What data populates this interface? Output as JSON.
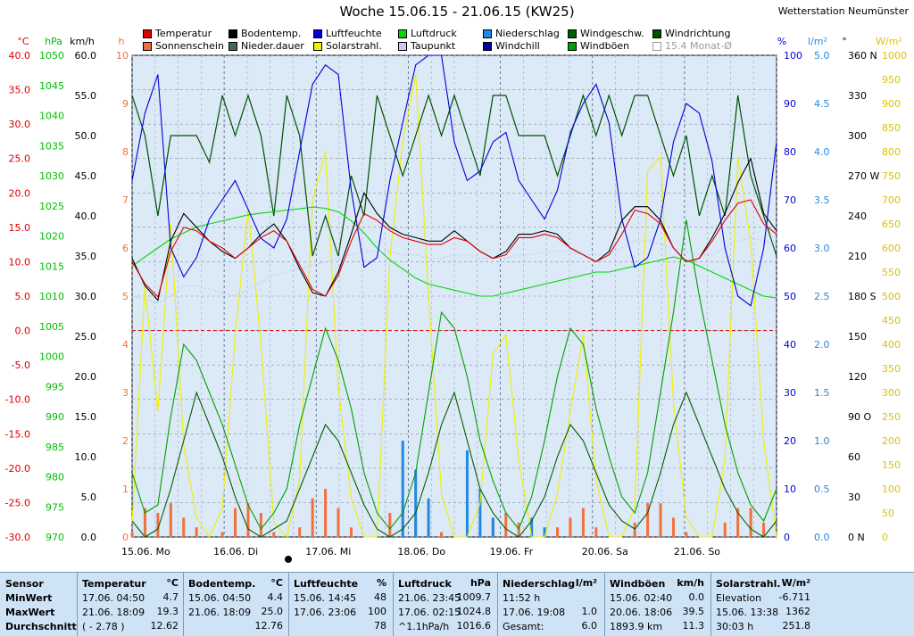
{
  "header": {
    "title": "Woche 15.06.15 - 21.06.15 (KW25)",
    "station": "Wetterstation Neumünster"
  },
  "legend": [
    {
      "label": "Temperatur",
      "color": "#e00000"
    },
    {
      "label": "Bodentemp.",
      "color": "#000000"
    },
    {
      "label": "Luftfeuchte",
      "color": "#0000d8"
    },
    {
      "label": "Luftdruck",
      "color": "#00d800"
    },
    {
      "label": "Niederschlag",
      "color": "#2288e0"
    },
    {
      "label": "Windgeschw.",
      "color": "#006000"
    },
    {
      "label": "Windrichtung",
      "color": "#005000"
    },
    {
      "label": "Sonnenschein",
      "color": "#f07040"
    },
    {
      "label": "Nieder.dauer",
      "color": "#406868"
    },
    {
      "label": "Solarstrahl.",
      "color": "#f0f000"
    },
    {
      "label": "Taupunkt",
      "color": "#c8c8f0"
    },
    {
      "label": "Windchill",
      "color": "#0000a0"
    },
    {
      "label": "Windböen",
      "color": "#00a000"
    },
    {
      "label": "15.4 Monat-Ø",
      "color": "#ffffff",
      "dim": true
    }
  ],
  "chart_data": {
    "type": "line",
    "title": "Woche 15.06.15 - 21.06.15 (KW25)",
    "x_axis": {
      "categories": [
        "15.06. Mo",
        "16.06. Di",
        "17.06. Mi",
        "18.06. Do",
        "19.06. Fr",
        "20.06. Sa",
        "21.06. So"
      ]
    },
    "axes": {
      "temperature": {
        "unit": "°C",
        "ticks": [
          "40.0",
          "35.0",
          "30.0",
          "25.0",
          "20.0",
          "15.0",
          "10.0",
          "5.0",
          "0.0",
          "-5.0",
          "-10.0",
          "-15.0",
          "-20.0",
          "-25.0",
          "-30.0"
        ],
        "range": [
          -30,
          40
        ],
        "color": "#e00000"
      },
      "pressure": {
        "unit": "hPa",
        "ticks": [
          "1050",
          "1045",
          "1040",
          "1035",
          "1030",
          "1025",
          "1020",
          "1015",
          "1010",
          "1005",
          "1000",
          "995",
          "990",
          "985",
          "980",
          "975",
          "970"
        ],
        "range": [
          970,
          1050
        ],
        "color": "#00c000"
      },
      "wind": {
        "unit": "km/h",
        "ticks": [
          "60.0",
          "55.0",
          "50.0",
          "45.0",
          "40.0",
          "35.0",
          "30.0",
          "25.0",
          "20.0",
          "15.0",
          "10.0",
          "5.0",
          "0.0"
        ],
        "range": [
          0,
          60
        ],
        "color": "#000000"
      },
      "sunshine": {
        "unit": "h",
        "ticks": [
          "10",
          "9",
          "8",
          "7",
          "6",
          "5",
          "4",
          "3",
          "2",
          "1",
          "0"
        ],
        "range": [
          0,
          10
        ],
        "color": "#f07040"
      },
      "humidity": {
        "unit": "%",
        "ticks": [
          "100",
          "90",
          "80",
          "70",
          "60",
          "50",
          "40",
          "30",
          "20",
          "10",
          "0"
        ],
        "range": [
          0,
          100
        ],
        "color": "#0000d8"
      },
      "precipitation": {
        "unit": "l/m²",
        "ticks": [
          "5.0",
          "4.5",
          "4.0",
          "3.5",
          "3.0",
          "2.5",
          "2.0",
          "1.5",
          "1.0",
          "0.5",
          "0.0"
        ],
        "range": [
          0,
          5
        ],
        "color": "#2288e0"
      },
      "wind_direction": {
        "unit": "°",
        "ticks": [
          "360 N",
          "330",
          "300",
          "270 W",
          "240",
          "210",
          "180 S",
          "150",
          "120",
          "90 O",
          "60",
          "30",
          "0 N"
        ],
        "range": [
          0,
          360
        ],
        "color": "#000000"
      },
      "solar": {
        "unit": "W/m²",
        "ticks": [
          "1000",
          "950",
          "900",
          "850",
          "800",
          "750",
          "700",
          "650",
          "600",
          "550",
          "500",
          "450",
          "400",
          "350",
          "300",
          "250",
          "200",
          "150",
          "100",
          "50",
          "0"
        ],
        "range": [
          0,
          1000
        ],
        "color": "#e0c000"
      }
    },
    "grid": true,
    "reference_line_zero_celsius": 0,
    "series": [
      {
        "name": "Temperatur",
        "unit": "°C",
        "values": [
          10.0,
          6.8,
          4.9,
          11.5,
          15.0,
          14.5,
          13.0,
          12.0,
          10.5,
          12.0,
          13.5,
          14.5,
          13.0,
          9.5,
          6.0,
          5.0,
          8.0,
          13.0,
          17.0,
          16.0,
          14.5,
          13.5,
          13.0,
          12.5,
          12.5,
          13.5,
          13.0,
          11.5,
          10.5,
          11.0,
          13.5,
          13.5,
          14.0,
          13.5,
          12.0,
          11.0,
          10.0,
          11.0,
          14.0,
          17.5,
          17.0,
          15.5,
          12.0,
          10.0,
          10.5,
          13.0,
          16.0,
          18.5,
          19.0,
          15.5,
          14.0
        ]
      },
      {
        "name": "Bodentemp.",
        "unit": "°C",
        "values": [
          10.5,
          6.5,
          4.4,
          13.0,
          17.0,
          15.0,
          13.0,
          11.5,
          10.5,
          12.0,
          14.0,
          15.5,
          13.0,
          9.0,
          5.5,
          5.0,
          8.5,
          14.0,
          20.0,
          17.0,
          15.0,
          14.0,
          13.5,
          13.0,
          13.0,
          14.5,
          13.0,
          11.5,
          10.5,
          11.5,
          14.0,
          14.0,
          14.5,
          14.0,
          12.0,
          11.0,
          10.0,
          11.5,
          16.0,
          18.0,
          18.0,
          16.0,
          12.0,
          10.0,
          10.5,
          13.5,
          17.0,
          21.5,
          25.0,
          17.0,
          14.5
        ]
      },
      {
        "name": "Taupunkt",
        "unit": "°C",
        "values": [
          5.0,
          4.5,
          4.0,
          5.0,
          6.5,
          6.5,
          6.0,
          5.5,
          5.0,
          6.0,
          7.0,
          8.0,
          8.5,
          9.0,
          9.5,
          10.0,
          10.5,
          11.0,
          11.5,
          11.5,
          11.5,
          11.0,
          11.0,
          10.5,
          10.5,
          11.0,
          11.0,
          10.5,
          10.5,
          10.5,
          11.0,
          11.0,
          11.5,
          11.5,
          11.5,
          11.0,
          11.0,
          11.0,
          12.0,
          13.0,
          13.0,
          12.5,
          12.0,
          11.5,
          11.0,
          11.0,
          12.0,
          13.0,
          13.5,
          13.0,
          12.5
        ]
      },
      {
        "name": "Luftfeuchte",
        "unit": "%",
        "values": [
          74,
          88,
          96,
          60,
          54,
          58,
          66,
          70,
          74,
          68,
          62,
          60,
          66,
          80,
          94,
          98,
          96,
          72,
          56,
          58,
          74,
          86,
          98,
          100,
          100,
          82,
          74,
          76,
          82,
          84,
          74,
          70,
          66,
          72,
          84,
          90,
          94,
          86,
          66,
          56,
          58,
          66,
          82,
          90,
          88,
          78,
          60,
          50,
          48,
          60,
          82
        ]
      },
      {
        "name": "Luftdruck",
        "unit": "hPa",
        "values": [
          1015.0,
          1016.5,
          1018.0,
          1019.5,
          1020.5,
          1021.5,
          1022.0,
          1022.5,
          1023.0,
          1023.5,
          1023.8,
          1024.0,
          1024.3,
          1024.5,
          1024.8,
          1024.6,
          1024.0,
          1022.5,
          1020.5,
          1018.0,
          1016.0,
          1014.5,
          1013.0,
          1012.0,
          1011.5,
          1011.0,
          1010.5,
          1010.0,
          1010.0,
          1010.5,
          1011.0,
          1011.5,
          1012.0,
          1012.5,
          1013.0,
          1013.5,
          1014.0,
          1014.0,
          1014.5,
          1015.0,
          1015.5,
          1016.0,
          1016.5,
          1016.0,
          1015.0,
          1014.0,
          1013.0,
          1012.0,
          1011.0,
          1010.0,
          1009.7
        ]
      },
      {
        "name": "Windgeschw.",
        "unit": "km/h",
        "values": [
          2,
          0,
          1,
          6,
          12,
          18,
          14,
          10,
          5,
          1,
          0,
          1,
          2,
          6,
          10,
          14,
          12,
          8,
          4,
          1,
          0,
          1,
          3,
          8,
          14,
          18,
          12,
          6,
          3,
          1,
          0,
          2,
          5,
          10,
          14,
          12,
          8,
          4,
          2,
          1,
          3,
          8,
          14,
          18,
          14,
          10,
          6,
          3,
          1,
          0,
          2
        ]
      },
      {
        "name": "Windböen",
        "unit": "km/h",
        "values": [
          8,
          3,
          4,
          15,
          24,
          22,
          18,
          14,
          9,
          4,
          1,
          3,
          6,
          14,
          20,
          26,
          22,
          16,
          8,
          3,
          1,
          3,
          8,
          18,
          28,
          26,
          20,
          12,
          7,
          3,
          1,
          5,
          12,
          20,
          26,
          24,
          16,
          10,
          5,
          3,
          8,
          18,
          28,
          39.5,
          30,
          22,
          14,
          8,
          4,
          2,
          6
        ]
      },
      {
        "name": "Windrichtung",
        "unit": "°",
        "values": [
          330,
          300,
          240,
          300,
          300,
          300,
          280,
          330,
          300,
          330,
          300,
          240,
          330,
          300,
          210,
          240,
          210,
          270,
          240,
          330,
          300,
          270,
          300,
          330,
          300,
          330,
          300,
          270,
          330,
          330,
          300,
          300,
          300,
          270,
          300,
          330,
          300,
          330,
          300,
          330,
          330,
          300,
          270,
          300,
          240,
          270,
          240,
          330,
          270,
          240,
          210
        ]
      },
      {
        "name": "Solarstrahl.",
        "unit": "W/m²",
        "values": [
          30,
          520,
          260,
          650,
          190,
          40,
          0,
          60,
          420,
          680,
          400,
          30,
          0,
          120,
          700,
          800,
          310,
          80,
          0,
          0,
          580,
          820,
          960,
          500,
          90,
          0,
          0,
          70,
          380,
          420,
          160,
          0,
          0,
          90,
          260,
          420,
          120,
          0,
          0,
          60,
          760,
          790,
          280,
          40,
          0,
          0,
          160,
          790,
          610,
          200,
          0
        ]
      },
      {
        "name": "Sonnenschein",
        "unit": "h",
        "values": [
          0.1,
          0.6,
          0.5,
          0.7,
          0.4,
          0.2,
          0,
          0.1,
          0.6,
          0.7,
          0.5,
          0.1,
          0,
          0.2,
          0.8,
          1.0,
          0.6,
          0.2,
          0,
          0,
          0.5,
          0.6,
          0.4,
          0.2,
          0.1,
          0,
          0,
          0.1,
          0.4,
          0.5,
          0.3,
          0,
          0,
          0.2,
          0.4,
          0.6,
          0.2,
          0,
          0,
          0.3,
          0.7,
          0.7,
          0.4,
          0.1,
          0,
          0,
          0.3,
          0.6,
          0.6,
          0.3,
          0
        ]
      },
      {
        "name": "Niederschlag",
        "unit": "l/m²",
        "values": [
          0,
          0,
          0,
          0,
          0,
          0,
          0,
          0,
          0,
          0,
          0,
          0,
          0,
          0,
          0,
          0,
          0,
          0,
          0,
          0,
          0,
          1.0,
          0.7,
          0.4,
          0,
          0,
          0.9,
          0.5,
          0.2,
          0,
          0,
          0.2,
          0.1,
          0,
          0,
          0,
          0,
          0,
          0,
          0,
          0,
          0,
          0,
          0,
          0,
          0,
          0,
          0,
          0,
          0,
          0
        ]
      }
    ]
  },
  "stats": {
    "columns": [
      {
        "sensor": "Sensor",
        "rows": [
          "MinWert",
          "MaxWert",
          "Durchschnitt"
        ]
      },
      {
        "title": "Temperatur",
        "unit": "°C",
        "rows": [
          [
            "17.06.  04:50",
            "4.7"
          ],
          [
            "21.06.  18:09",
            "19.3"
          ],
          [
            "( - 2.78 )",
            "12.62"
          ]
        ]
      },
      {
        "title": "Bodentemp.",
        "unit": "°C",
        "rows": [
          [
            "15.06.  04:50",
            "4.4"
          ],
          [
            "21.06.  18:09",
            "25.0"
          ],
          [
            "",
            "12.76"
          ]
        ]
      },
      {
        "title": "Luftfeuchte",
        "unit": "%",
        "rows": [
          [
            "15.06.  14:45",
            "48"
          ],
          [
            "17.06.  23:06",
            "100"
          ],
          [
            "",
            "78"
          ]
        ]
      },
      {
        "title": "Luftdruck",
        "unit": "hPa",
        "rows": [
          [
            "21.06.  23:45",
            "1009.7"
          ],
          [
            "17.06.  02:15",
            "1024.8"
          ],
          [
            "^1.1hPa/h",
            "1016.6"
          ]
        ]
      },
      {
        "title": "Niederschlag",
        "unit": "l/m²",
        "rows": [
          [
            "11:52 h",
            ""
          ],
          [
            "17.06.  19:08",
            "1.0"
          ],
          [
            "Gesamt:",
            "6.0"
          ]
        ]
      },
      {
        "title": "Windböen",
        "unit": "km/h",
        "rows": [
          [
            "15.06.  02:40",
            "0.0"
          ],
          [
            "20.06.  18:06",
            "39.5"
          ],
          [
            "1893.9 km",
            "11.3"
          ]
        ]
      },
      {
        "title": "Solarstrahl.",
        "unit": "W/m²",
        "rows": [
          [
            "Elevation",
            "-6.711"
          ],
          [
            "15.06.  13:38",
            "1362"
          ],
          [
            "30:03 h",
            "251.8"
          ]
        ]
      }
    ]
  }
}
